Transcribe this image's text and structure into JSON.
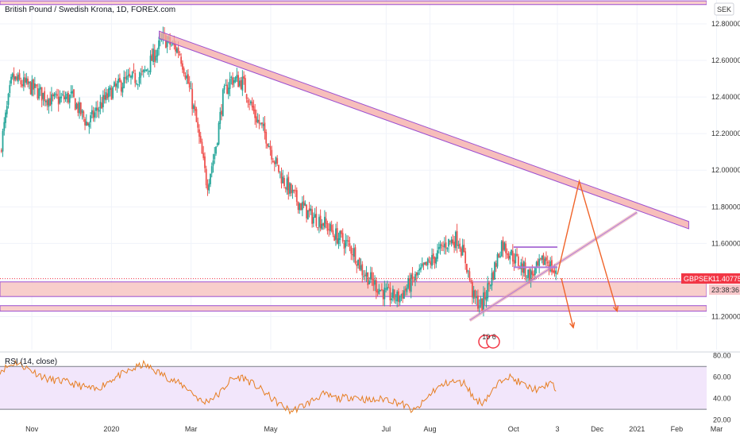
{
  "header": {
    "title": "British Pound / Swedish Krona, 1D, FOREX.com",
    "currency_button": "SEK"
  },
  "chart_data": [
    {
      "type": "candlestick",
      "title": "British Pound / Swedish Krona, 1D, FOREX.com",
      "symbol": "GBPSEK",
      "ylim": [
        11.02,
        12.93
      ],
      "x_range_months": [
        -0.8,
        16.95
      ],
      "y_ticks": [
        12.8,
        12.6,
        12.4,
        12.2,
        12.0,
        11.8,
        11.6,
        11.4,
        11.2
      ],
      "y_tick_labels": [
        "12.80000",
        "12.60000",
        "12.40000",
        "12.20000",
        "12.00000",
        "11.80000",
        "11.60000",
        "11.40000",
        "11.20000"
      ],
      "x_ticks": [
        {
          "month": 0,
          "label": "Nov"
        },
        {
          "month": 2,
          "label": "2020"
        },
        {
          "month": 4,
          "label": "Mar"
        },
        {
          "month": 6,
          "label": "May"
        },
        {
          "month": 8.9,
          "label": "Jul"
        },
        {
          "month": 10,
          "label": "Aug"
        },
        {
          "month": 12.1,
          "label": "Oct"
        },
        {
          "month": 13.2,
          "label": "3"
        },
        {
          "month": 14.2,
          "label": "Dec"
        },
        {
          "month": 15.2,
          "label": "2021"
        },
        {
          "month": 16.2,
          "label": "Feb"
        },
        {
          "month": 17.2,
          "label": "Mar"
        }
      ],
      "price_path": [
        [
          -0.8,
          12.1
        ],
        [
          -0.5,
          12.5
        ],
        [
          0,
          12.45
        ],
        [
          0.5,
          12.38
        ],
        [
          1,
          12.4
        ],
        [
          1.4,
          12.25
        ],
        [
          1.7,
          12.35
        ],
        [
          2,
          12.43
        ],
        [
          2.3,
          12.48
        ],
        [
          2.8,
          12.52
        ],
        [
          3.0,
          12.6
        ],
        [
          3.3,
          12.72
        ],
        [
          3.7,
          12.65
        ],
        [
          3.9,
          12.5
        ],
        [
          4.1,
          12.3
        ],
        [
          4.4,
          11.92
        ],
        [
          4.6,
          12.1
        ],
        [
          4.8,
          12.4
        ],
        [
          5.0,
          12.5
        ],
        [
          5.3,
          12.48
        ],
        [
          5.6,
          12.3
        ],
        [
          5.9,
          12.18
        ],
        [
          6.1,
          12.05
        ],
        [
          6.3,
          11.95
        ],
        [
          6.6,
          11.85
        ],
        [
          7.0,
          11.75
        ],
        [
          7.3,
          11.72
        ],
        [
          7.6,
          11.65
        ],
        [
          7.9,
          11.6
        ],
        [
          8.1,
          11.55
        ],
        [
          8.3,
          11.45
        ],
        [
          8.6,
          11.38
        ],
        [
          8.9,
          11.32
        ],
        [
          9.2,
          11.3
        ],
        [
          9.5,
          11.38
        ],
        [
          9.8,
          11.45
        ],
        [
          10.1,
          11.52
        ],
        [
          10.4,
          11.6
        ],
        [
          10.7,
          11.63
        ],
        [
          10.9,
          11.5
        ],
        [
          11.1,
          11.3
        ],
        [
          11.3,
          11.26
        ],
        [
          11.6,
          11.45
        ],
        [
          11.8,
          11.6
        ],
        [
          12.0,
          11.55
        ],
        [
          12.2,
          11.5
        ],
        [
          12.5,
          11.42
        ],
        [
          12.7,
          11.46
        ],
        [
          12.9,
          11.52
        ],
        [
          13.1,
          11.45
        ],
        [
          13.2,
          11.41
        ]
      ],
      "last_price": 11.40775,
      "last_price_label": "11.40775",
      "countdown": "23:38:36",
      "marker_text": "10 6",
      "drawings": {
        "zones": [
          {
            "y_low": 11.31,
            "y_high": 11.39,
            "color": "#f7c5c2"
          },
          {
            "y_low": 11.23,
            "y_high": 11.26,
            "color": "#f7c5c2"
          },
          {
            "y_low": 12.905,
            "y_high": 12.925,
            "color": "#f7c5c2"
          }
        ],
        "resistance_channel": {
          "x1": 3.2,
          "y1": 12.74,
          "x2": 16.5,
          "y2": 11.7,
          "width": 0.04,
          "color": "#f4a8a4"
        },
        "support_line": {
          "x1": 11.0,
          "y1": 11.18,
          "x2": 15.2,
          "y2": 11.77,
          "color": "#e8a0a8"
        },
        "rect_top": {
          "x1": 12.1,
          "x2": 13.2,
          "y_low": 11.47,
          "y_high": 11.58
        },
        "projection_up": [
          [
            13.2,
            11.43
          ],
          [
            13.75,
            11.94
          ],
          [
            14.7,
            11.23
          ]
        ],
        "projection_down": [
          [
            13.3,
            11.41
          ],
          [
            13.6,
            11.14
          ]
        ]
      }
    },
    {
      "type": "line",
      "title": "RSI (14, close)",
      "ylim": [
        19,
        82
      ],
      "y_ticks": [
        80,
        60,
        40,
        20
      ],
      "y_tick_labels": [
        "80.00",
        "60.00",
        "40.00",
        "20.00"
      ],
      "bands": {
        "upper": 70,
        "lower": 30
      },
      "rsi_path": [
        [
          -0.8,
          66
        ],
        [
          -0.4,
          74
        ],
        [
          0,
          66
        ],
        [
          0.4,
          58
        ],
        [
          0.8,
          56
        ],
        [
          1.2,
          52
        ],
        [
          1.6,
          48
        ],
        [
          2.0,
          58
        ],
        [
          2.4,
          65
        ],
        [
          2.8,
          72
        ],
        [
          3.1,
          66
        ],
        [
          3.5,
          58
        ],
        [
          3.9,
          50
        ],
        [
          4.3,
          36
        ],
        [
          4.7,
          44
        ],
        [
          5.0,
          58
        ],
        [
          5.3,
          60
        ],
        [
          5.7,
          50
        ],
        [
          6.1,
          38
        ],
        [
          6.5,
          28
        ],
        [
          6.9,
          35
        ],
        [
          7.3,
          44
        ],
        [
          7.7,
          40
        ],
        [
          8.1,
          42
        ],
        [
          8.5,
          38
        ],
        [
          8.9,
          40
        ],
        [
          9.3,
          35
        ],
        [
          9.6,
          28
        ],
        [
          9.8,
          35
        ],
        [
          10.1,
          48
        ],
        [
          10.5,
          56
        ],
        [
          10.9,
          54
        ],
        [
          11.1,
          40
        ],
        [
          11.3,
          36
        ],
        [
          11.6,
          48
        ],
        [
          11.9,
          62
        ],
        [
          12.2,
          56
        ],
        [
          12.5,
          50
        ],
        [
          12.8,
          48
        ],
        [
          13.0,
          56
        ],
        [
          13.2,
          46
        ]
      ]
    }
  ]
}
